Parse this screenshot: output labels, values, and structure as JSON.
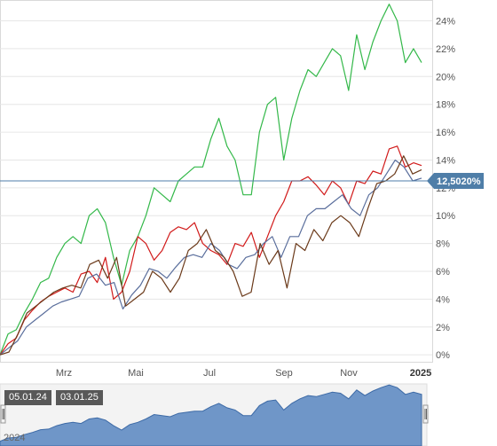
{
  "chart_data": {
    "type": "line",
    "x_labels": [
      "Mrz",
      "Mai",
      "Jul",
      "Sep",
      "Nov",
      "2025"
    ],
    "y_ticks": [
      "0%",
      "2%",
      "4%",
      "6%",
      "8%",
      "10%",
      "12%",
      "14%",
      "16%",
      "18%",
      "20%",
      "22%",
      "24%"
    ],
    "ylim": [
      -0.5,
      25.5
    ],
    "grid": "horizontal",
    "y_axis_side": "right",
    "series": [
      {
        "color": "#33b849",
        "values": [
          0,
          1.5,
          1.8,
          3,
          4,
          5.2,
          5.5,
          7,
          8,
          8.5,
          8,
          10,
          10.5,
          9.5,
          7,
          5,
          7.5,
          8.5,
          10,
          12,
          11.5,
          11,
          12.5,
          13,
          13.5,
          13.5,
          15.5,
          17,
          15,
          14,
          11.5,
          11.5,
          16,
          18,
          18.5,
          14,
          17,
          19,
          20.5,
          20,
          21,
          22,
          21.5,
          19,
          23,
          20.5,
          22.5,
          24,
          25.2,
          24,
          21,
          22,
          21
        ]
      },
      {
        "color": "#d11a1a",
        "values": [
          0,
          0.8,
          1.2,
          2.5,
          3.2,
          3.8,
          4.2,
          4.5,
          4.8,
          4.5,
          5.8,
          6,
          5.2,
          7,
          4,
          4.5,
          6,
          8.5,
          8,
          6.8,
          7.5,
          8.8,
          9.2,
          9,
          9.5,
          8,
          7.5,
          7.2,
          6.5,
          8,
          7.8,
          8.8,
          7,
          8.5,
          10,
          11,
          12.5,
          12.5,
          12.8,
          12.2,
          11.5,
          12.5,
          12,
          10.8,
          12.5,
          12.3,
          13.2,
          13,
          14.8,
          15,
          13.5,
          13.8,
          13.6
        ]
      },
      {
        "color": "#5a6e9c",
        "values": [
          0,
          0.5,
          1,
          2,
          2.5,
          3,
          3.5,
          3.8,
          4,
          4.2,
          5.5,
          5.8,
          5,
          5.2,
          3.3,
          4.3,
          5,
          6.2,
          6,
          5.5,
          6.3,
          7,
          7.2,
          7,
          8,
          7.5,
          6.5,
          6.2,
          7,
          7.2,
          8,
          8.5,
          7,
          8.5,
          8.5,
          10,
          10.5,
          10.5,
          11,
          11.5,
          10.5,
          10,
          11.5,
          12,
          13,
          14,
          13.5,
          12.5,
          12.7
        ]
      },
      {
        "color": "#6b3a1a",
        "values": [
          0,
          0.2,
          1.5,
          3,
          3.5,
          4,
          4.5,
          4.8,
          5,
          4.8,
          6.5,
          6.8,
          5.5,
          7,
          3.5,
          4,
          4.5,
          6,
          5.5,
          4.5,
          5.5,
          7.5,
          8,
          9,
          7.5,
          7,
          6,
          4.2,
          4.5,
          8,
          6.5,
          7.5,
          4.8,
          8,
          7.5,
          9,
          8.2,
          9.5,
          10,
          9.5,
          8.5,
          10.5,
          12.3,
          12.5,
          13,
          14.3,
          13,
          13.3
        ]
      }
    ],
    "reference_line": {
      "value": 12.502,
      "label": "12,5020%",
      "color": "#4f7ea8"
    }
  },
  "navigator": {
    "range_start": "05.01.24",
    "range_end": "03.01.25",
    "year_label": "2024"
  },
  "colors": {
    "grid": "#e6e6e6",
    "navigator_fill": "#6f96c8",
    "navigator_line": "#3d6aa6",
    "readout_bg": "#4f7ea8"
  }
}
